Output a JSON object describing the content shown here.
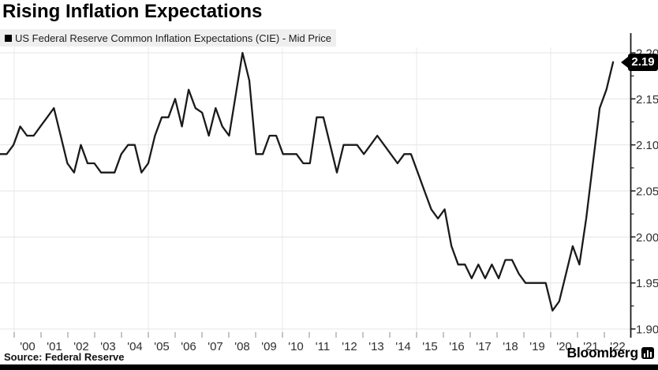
{
  "page": {
    "title": "Rising Inflation Expectations",
    "source_label": "Source: Federal Reserve",
    "brand": "Bloomberg"
  },
  "legend": {
    "swatch_color": "#000000",
    "label": "US Federal Reserve Common Inflation Expectations (CIE) - Mid Price"
  },
  "chart_data": {
    "type": "line",
    "title": "Rising Inflation Expectations",
    "series": [
      {
        "name": "US Federal Reserve Common Inflation Expectations (CIE) - Mid Price",
        "frequency": "quarterly",
        "start_period": "1999 Q2",
        "end_period": "2022 Q1",
        "values": [
          2.09,
          2.09,
          2.1,
          2.12,
          2.11,
          2.11,
          2.12,
          2.13,
          2.14,
          2.11,
          2.08,
          2.07,
          2.1,
          2.08,
          2.08,
          2.07,
          2.07,
          2.07,
          2.09,
          2.1,
          2.1,
          2.07,
          2.08,
          2.11,
          2.13,
          2.13,
          2.15,
          2.12,
          2.16,
          2.14,
          2.135,
          2.11,
          2.14,
          2.12,
          2.11,
          2.155,
          2.2,
          2.17,
          2.09,
          2.09,
          2.11,
          2.11,
          2.09,
          2.09,
          2.09,
          2.08,
          2.08,
          2.13,
          2.13,
          2.1,
          2.07,
          2.1,
          2.1,
          2.1,
          2.09,
          2.1,
          2.11,
          2.1,
          2.09,
          2.08,
          2.09,
          2.09,
          2.07,
          2.05,
          2.03,
          2.02,
          2.03,
          1.99,
          1.97,
          1.97,
          1.955,
          1.97,
          1.955,
          1.97,
          1.955,
          1.975,
          1.975,
          1.96,
          1.95,
          1.95,
          1.95,
          1.95,
          1.92,
          1.93,
          1.96,
          1.99,
          1.97,
          2.02,
          2.08,
          2.14,
          2.16,
          2.19
        ]
      }
    ],
    "last_price": 2.19,
    "last_price_label": "2.19",
    "line_color": "#1a1a1a",
    "ylim": [
      1.9,
      2.2
    ],
    "y_ticks": [
      2.2,
      2.15,
      2.1,
      2.05,
      2.0,
      1.95,
      1.9
    ],
    "y_tick_labels": [
      "2.20",
      "2.15",
      "2.10",
      "2.05",
      "2.00",
      "1.95",
      "1.90"
    ],
    "y_minor_step": 0.025,
    "x_tick_years": [
      2000,
      2001,
      2002,
      2003,
      2004,
      2005,
      2006,
      2007,
      2008,
      2009,
      2010,
      2011,
      2012,
      2013,
      2014,
      2015,
      2016,
      2017,
      2018,
      2019,
      2020,
      2021,
      2022
    ],
    "x_tick_labels": [
      "'00",
      "'01",
      "'02",
      "'03",
      "'04",
      "'05",
      "'06",
      "'07",
      "'08",
      "'09",
      "'10",
      "'11",
      "'12",
      "'13",
      "'14",
      "'15",
      "'16",
      "'17",
      "'18",
      "'19",
      "'20",
      "'21",
      "'22"
    ],
    "x_gridline_years": [
      2000,
      2005,
      2010,
      2015,
      2020
    ],
    "grid": true,
    "axis_side": "right",
    "legend_position": "top-left"
  }
}
